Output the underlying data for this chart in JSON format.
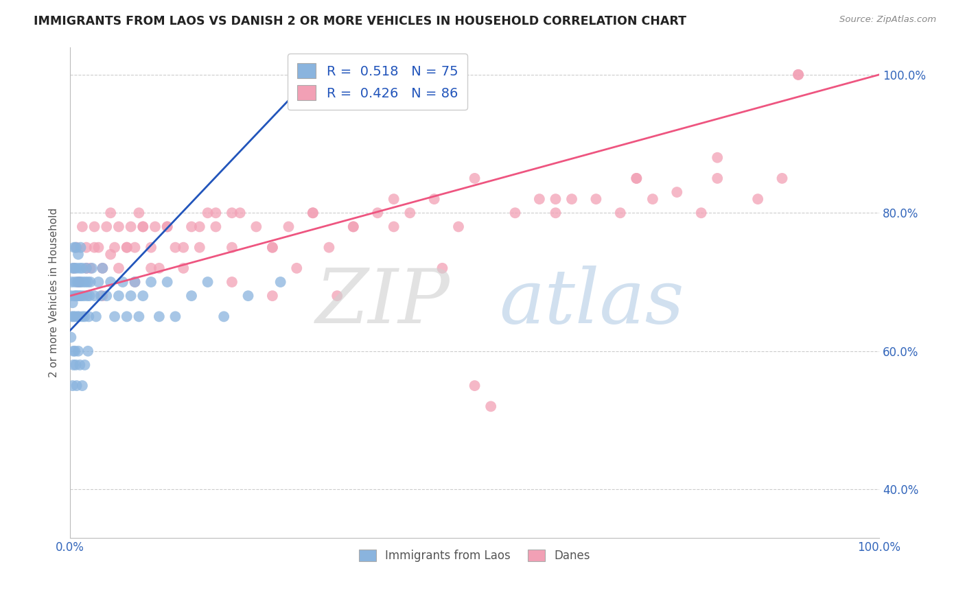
{
  "title": "IMMIGRANTS FROM LAOS VS DANISH 2 OR MORE VEHICLES IN HOUSEHOLD CORRELATION CHART",
  "source_text": "Source: ZipAtlas.com",
  "ylabel": "2 or more Vehicles in Household",
  "R1": 0.518,
  "N1": 75,
  "R2": 0.426,
  "N2": 86,
  "color_blue": "#8ab4de",
  "color_pink": "#f2a0b5",
  "line_blue": "#2255bb",
  "line_pink": "#ee5580",
  "legend_label1": "Immigrants from Laos",
  "legend_label2": "Danes",
  "x_min": 0.0,
  "x_max": 100.0,
  "y_min": 33.0,
  "y_max": 104.0,
  "blue_scatter_x": [
    0.1,
    0.1,
    0.2,
    0.2,
    0.3,
    0.3,
    0.4,
    0.4,
    0.5,
    0.5,
    0.5,
    0.6,
    0.6,
    0.7,
    0.7,
    0.8,
    0.8,
    0.9,
    0.9,
    1.0,
    1.0,
    1.1,
    1.1,
    1.2,
    1.2,
    1.3,
    1.3,
    1.4,
    1.5,
    1.5,
    1.6,
    1.7,
    1.8,
    1.9,
    2.0,
    2.1,
    2.2,
    2.3,
    2.4,
    2.5,
    2.7,
    3.0,
    3.2,
    3.5,
    3.8,
    4.0,
    4.5,
    5.0,
    5.5,
    6.0,
    6.5,
    7.0,
    7.5,
    8.0,
    8.5,
    9.0,
    10.0,
    11.0,
    12.0,
    13.0,
    15.0,
    17.0,
    19.0,
    22.0,
    26.0,
    0.3,
    0.4,
    0.6,
    0.7,
    0.8,
    1.0,
    1.2,
    1.5,
    1.8,
    2.2
  ],
  "blue_scatter_y": [
    68,
    62,
    70,
    65,
    72,
    67,
    65,
    60,
    75,
    68,
    72,
    70,
    65,
    68,
    75,
    72,
    68,
    65,
    70,
    68,
    74,
    70,
    65,
    72,
    68,
    75,
    70,
    68,
    72,
    65,
    70,
    68,
    65,
    70,
    72,
    68,
    70,
    65,
    68,
    70,
    72,
    68,
    65,
    70,
    68,
    72,
    68,
    70,
    65,
    68,
    70,
    65,
    68,
    70,
    65,
    68,
    70,
    65,
    70,
    65,
    68,
    70,
    65,
    68,
    70,
    55,
    58,
    60,
    58,
    55,
    60,
    58,
    55,
    58,
    60
  ],
  "pink_scatter_x": [
    0.5,
    0.8,
    1.2,
    1.5,
    2.0,
    2.5,
    3.0,
    3.5,
    4.0,
    4.5,
    5.0,
    5.5,
    6.0,
    7.0,
    7.5,
    8.0,
    8.5,
    9.0,
    10.0,
    10.5,
    11.0,
    12.0,
    13.0,
    14.0,
    15.0,
    16.0,
    17.0,
    18.0,
    20.0,
    21.0,
    23.0,
    25.0,
    27.0,
    30.0,
    32.0,
    35.0,
    38.0,
    40.0,
    42.0,
    45.0,
    48.0,
    50.0,
    55.0,
    58.0,
    60.0,
    62.0,
    65.0,
    68.0,
    70.0,
    72.0,
    75.0,
    78.0,
    80.0,
    85.0,
    88.0,
    90.0,
    1.0,
    2.0,
    3.0,
    4.0,
    5.0,
    6.0,
    7.0,
    8.0,
    9.0,
    10.0,
    12.0,
    14.0,
    16.0,
    18.0,
    20.0,
    25.0,
    30.0,
    35.0,
    40.0,
    50.0,
    60.0,
    70.0,
    80.0,
    90.0,
    28.0,
    52.0,
    33.0,
    46.0,
    20.0,
    25.0
  ],
  "pink_scatter_y": [
    72,
    75,
    70,
    78,
    75,
    72,
    78,
    75,
    72,
    78,
    80,
    75,
    78,
    75,
    78,
    75,
    80,
    78,
    75,
    78,
    72,
    78,
    75,
    72,
    78,
    75,
    80,
    78,
    75,
    80,
    78,
    75,
    78,
    80,
    75,
    78,
    80,
    78,
    80,
    82,
    78,
    55,
    80,
    82,
    80,
    82,
    82,
    80,
    85,
    82,
    83,
    80,
    85,
    82,
    85,
    100,
    70,
    72,
    75,
    68,
    74,
    72,
    75,
    70,
    78,
    72,
    78,
    75,
    78,
    80,
    80,
    75,
    80,
    78,
    82,
    85,
    82,
    85,
    88,
    100,
    72,
    52,
    68,
    72,
    70,
    68
  ],
  "blue_trend_x": [
    0,
    30
  ],
  "blue_trend_y": [
    63,
    100
  ],
  "pink_trend_x": [
    0,
    100
  ],
  "pink_trend_y": [
    68,
    100
  ],
  "yticks": [
    40,
    60,
    80,
    100
  ],
  "ytick_labels": [
    "40.0%",
    "60.0%",
    "80.0%",
    "100.0%"
  ],
  "xtick_labels": [
    "0.0%",
    "100.0%"
  ],
  "watermark_zip": "ZIP",
  "watermark_atlas": "atlas"
}
